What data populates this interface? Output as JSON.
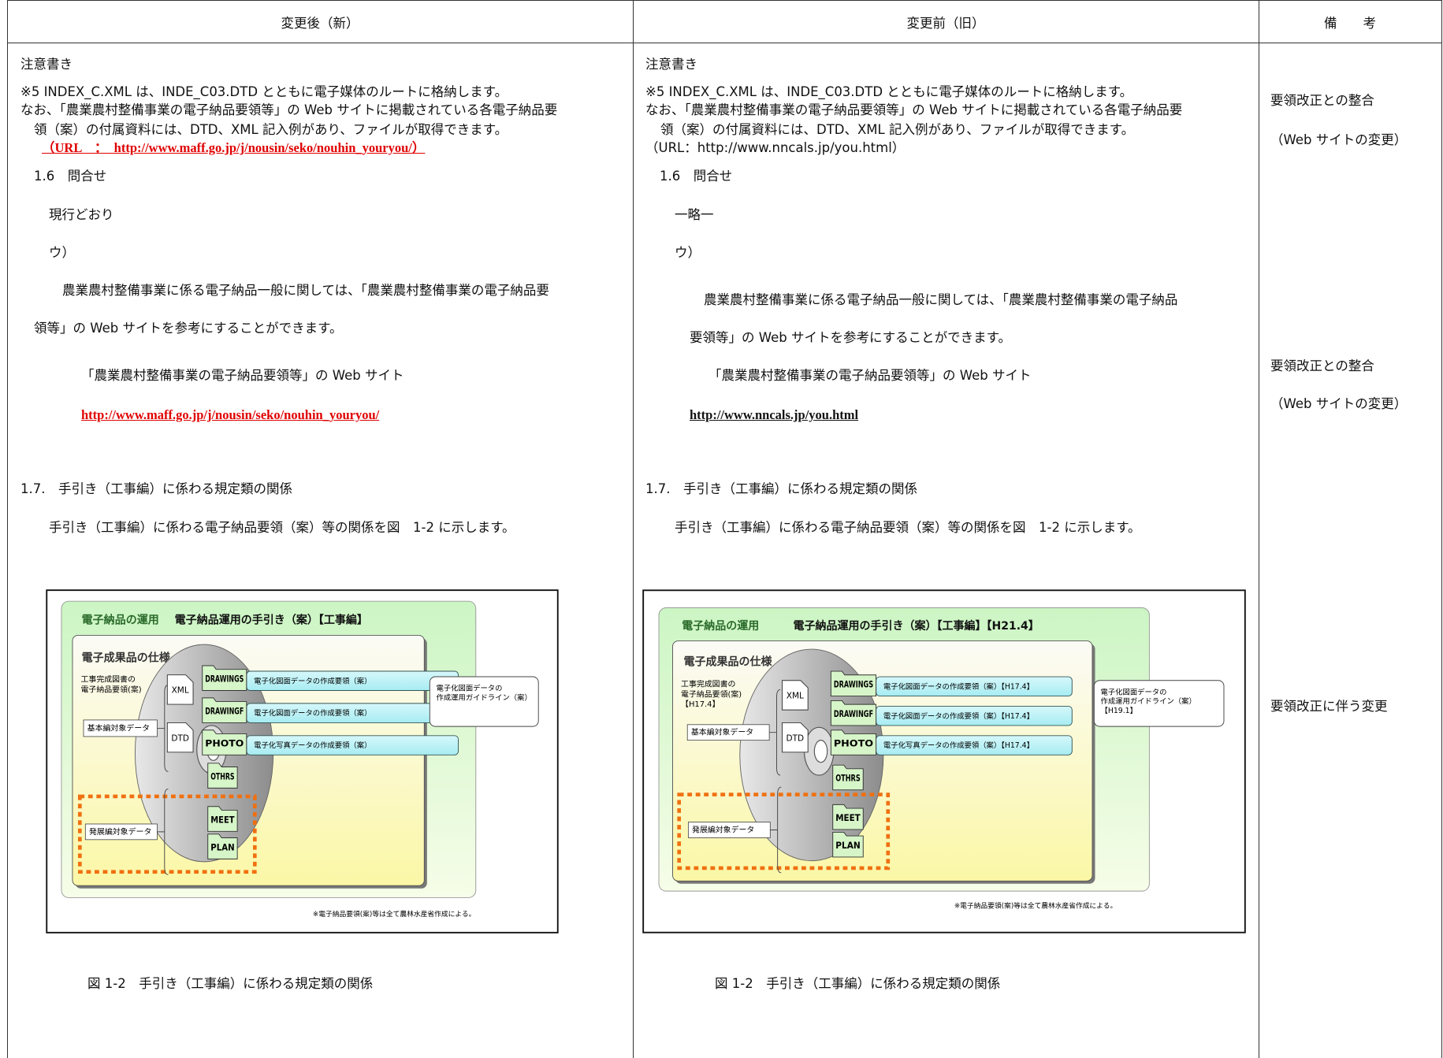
{
  "header": {
    "new": "変更後（新）",
    "old": "変更前（旧）",
    "remarks": "備　　考"
  },
  "new": {
    "lines": [
      "注意書き",
      "※5 INDEX_C.XML は、INDE_C03.DTD とともに電子媒体のルートに格納します。",
      "なお、「農業農村整備事業の電子納品要領等」の Web サイトに掲載されている各電子納品要",
      "領（案）の付属資料には、DTD、XML 記入例があり、ファイルが取得できます。",
      "（URL　：　http://www.maff.go.jp/j/nousin/seko/nouhin_youryou/）",
      "1.6　問合せ",
      "現行どおり",
      "ウ）",
      "農業農村整備事業に係る電子納品一般に関しては、「農業農村整備事業の電子納品要",
      "領等」の Web サイトを参考にすることができます。",
      "「農業農村整備事業の電子納品要領等」の Web サイト",
      "http://www.maff.go.jp/j/nousin/seko/nouhin_youryou/",
      "1.7.　手引き（工事編）に係わる規定類の関係",
      "手引き（工事編）に係わる電子納品要領（案）等の関係を図　1-2 に示します。",
      "図 1-2　手引き（工事編）に係わる規定類の関係"
    ],
    "figure": {
      "heading": "電子納品の運用",
      "title": "電子納品運用の手引き（案）【工事編】",
      "spec_title": "電子成果品の仕様",
      "standard": [
        "工事完成図書の",
        "電子納品要領(案)"
      ],
      "files": [
        "XML",
        "DTD"
      ],
      "basic": "基本編対象データ",
      "advanced": "発展編対象データ",
      "folders": [
        {
          "name": "DRAWINGS",
          "spec": "電子化図面データの作成要領（案）"
        },
        {
          "name": "DRAWINGF",
          "spec": "電子化図面データの作成要領（案）"
        },
        {
          "name": "PHOTO",
          "spec": "電子化写真データの作成要領（案）"
        },
        {
          "name": "OTHRS"
        },
        {
          "name": "MEET"
        },
        {
          "name": "PLAN"
        }
      ],
      "guideline": [
        "電子化図面データの",
        "作成運用ガイドライン（案）"
      ],
      "note": "※電子納品要領(案)等は全て農林水産省作成による。"
    }
  },
  "old": {
    "lines": [
      "注意書き",
      "※5 INDEX_C.XML は、INDE_C03.DTD とともに電子媒体のルートに格納します。",
      "なお、「農業農村整備事業の電子納品要領等」の Web サイトに掲載されている各電子納品要",
      "領（案）の付属資料には、DTD、XML 記入例があり、ファイルが取得できます。",
      "（URL：http://www.nncals.jp/you.html）",
      "1.6　問合せ",
      "一略一",
      "ウ）",
      "農業農村整備事業に係る電子納品一般に関しては、「農業農村整備事業の電子納品",
      "要領等」の Web サイトを参考にすることができます。",
      "「農業農村整備事業の電子納品要領等」の Web サイト",
      "http://www.nncals.jp/you.html",
      "1.7.　手引き（工事編）に係わる規定類の関係",
      "手引き（工事編）に係わる電子納品要領（案）等の関係を図　1-2 に示します。",
      "図 1-2　手引き（工事編）に係わる規定類の関係"
    ],
    "figure": {
      "heading": "電子納品の運用",
      "title": "電子納品運用の手引き（案）【工事編】【H21.4】",
      "spec_title": "電子成果品の仕様",
      "standard": [
        "工事完成図書の",
        "電子納品要領(案)",
        "【H17.4】"
      ],
      "files": [
        "XML",
        "DTD"
      ],
      "basic": "基本編対象データ",
      "advanced": "発展編対象データ",
      "folders": [
        {
          "name": "DRAWINGS",
          "spec": "電子化図面データの作成要領（案）【H17.4】"
        },
        {
          "name": "DRAWINGF",
          "spec": "電子化図面データの作成要領（案）【H17.4】"
        },
        {
          "name": "PHOTO",
          "spec": "電子化写真データの作成要領（案）【H17.4】"
        },
        {
          "name": "OTHRS"
        },
        {
          "name": "MEET"
        },
        {
          "name": "PLAN"
        }
      ],
      "guideline": [
        "電子化図面データの",
        "作成運用ガイドライン（案）",
        "【H19.1】"
      ],
      "note": "※電子納品要領(案)等は全て農林水産省作成による。"
    }
  },
  "remarks": [
    "要領改正との整合",
    "（Web サイトの変更）",
    "要領改正との整合",
    "（Web サイトの変更）",
    "要領改正に伴う変更"
  ]
}
